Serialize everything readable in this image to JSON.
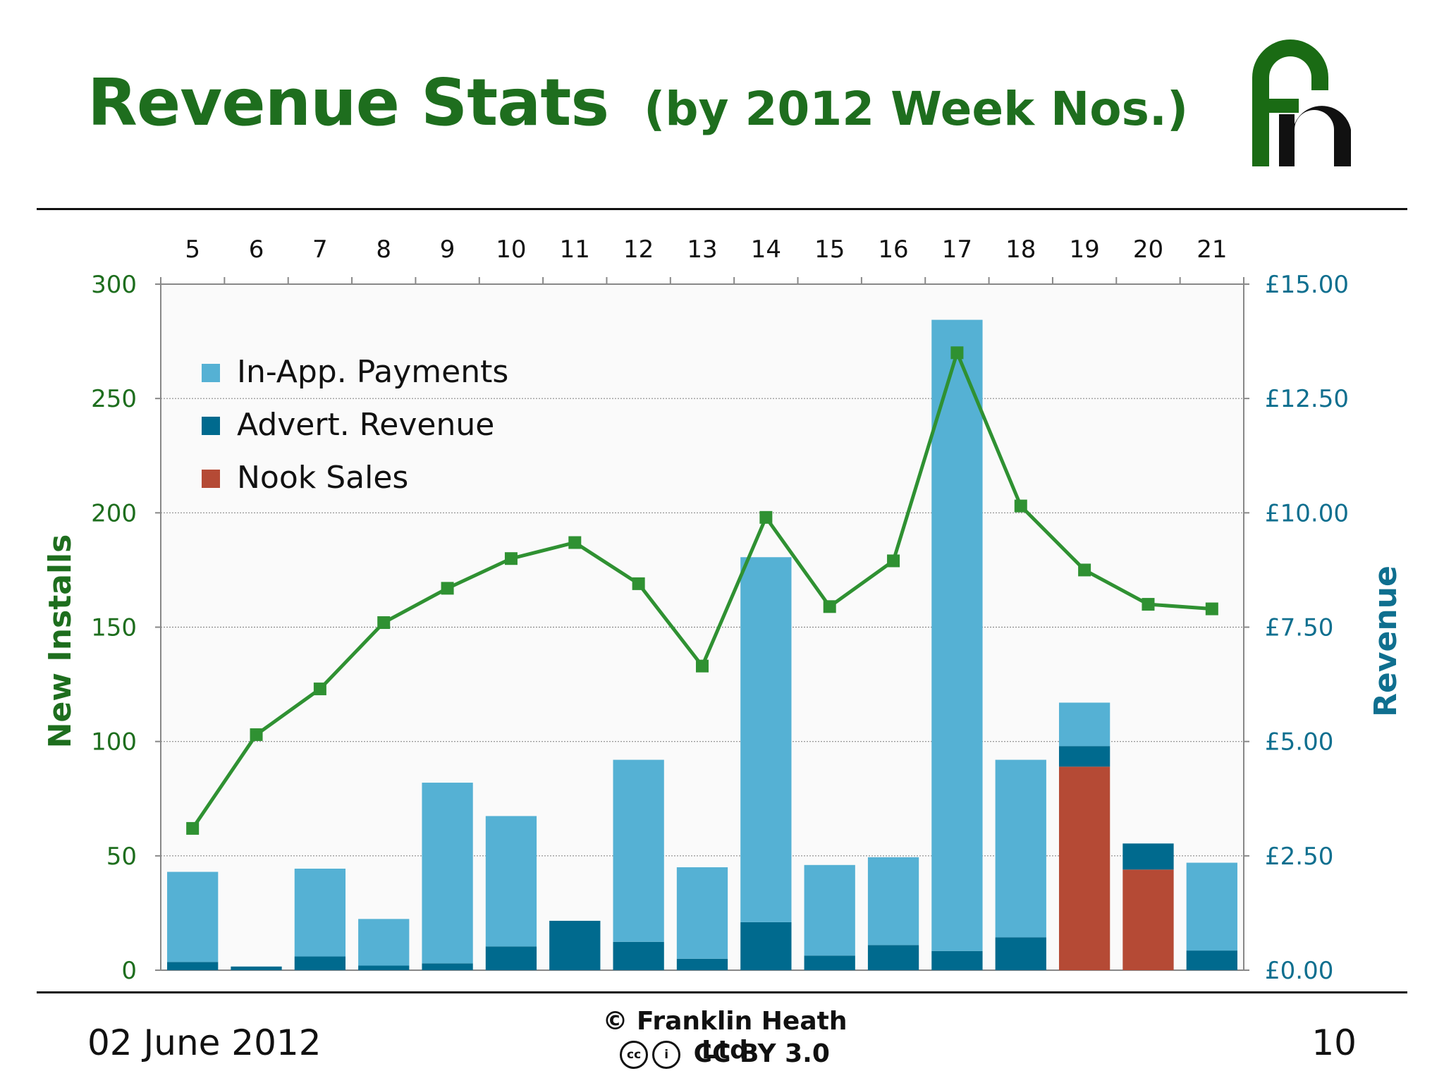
{
  "slide": {
    "title": "Revenue Stats",
    "subtitle": "(by 2012 Week Nos.)",
    "logo_text": "Fh",
    "date": "02 June 2012",
    "copyright": "© Franklin Heath Ltd",
    "license": "CC BY 3.0",
    "cc_icons": [
      "cc-icon",
      "by-icon"
    ],
    "page_number": "10"
  },
  "colors": {
    "title": "#1e6e1e",
    "in_app": "#55b1d4",
    "advert": "#006a8e",
    "nook": "#b54a35",
    "installs_line": "#2f9132",
    "left_axis": "#1e6e1e",
    "right_axis": "#0f6f8f"
  },
  "chart_data": {
    "type": "bar",
    "stacked": true,
    "title": "",
    "x": [
      5,
      6,
      7,
      8,
      9,
      10,
      11,
      12,
      13,
      14,
      15,
      16,
      17,
      18,
      19,
      20,
      21
    ],
    "xlabel": "",
    "ylabel_left": "New Installs",
    "ylabel_right": "Revenue",
    "ylim_left": [
      0,
      300
    ],
    "ylim_right": [
      0,
      15
    ],
    "yticks_left": [
      "0",
      "50",
      "100",
      "150",
      "200",
      "250",
      "300"
    ],
    "yticks_right": [
      "£0.00",
      "£2.50",
      "£5.00",
      "£7.50",
      "£10.00",
      "£12.50",
      "£15.00"
    ],
    "grid": true,
    "legend_position": "top-left",
    "series": [
      {
        "name": "Nook Sales",
        "axis": "right",
        "kind": "bar",
        "values": [
          0,
          0,
          0,
          0,
          0,
          0,
          0,
          0,
          0,
          0,
          0,
          0,
          0,
          0,
          4.45,
          2.2,
          0
        ]
      },
      {
        "name": "Advert. Revenue",
        "axis": "right",
        "kind": "bar",
        "values": [
          0.18,
          0.08,
          0.3,
          0.1,
          0.15,
          0.52,
          1.08,
          0.62,
          0.25,
          1.05,
          0.32,
          0.55,
          0.42,
          0.72,
          0.45,
          0.57,
          0.43
        ]
      },
      {
        "name": "In-App. Payments",
        "axis": "right",
        "kind": "bar",
        "values": [
          1.97,
          0,
          1.92,
          1.02,
          3.95,
          2.85,
          0,
          3.98,
          2.0,
          7.98,
          1.98,
          1.92,
          13.8,
          3.88,
          0.95,
          0,
          1.92
        ]
      },
      {
        "name": "",
        "axis": "left",
        "kind": "line",
        "values": [
          62,
          103,
          123,
          152,
          167,
          180,
          187,
          169,
          133,
          198,
          159,
          179,
          270,
          203,
          175,
          160,
          158
        ]
      }
    ]
  }
}
